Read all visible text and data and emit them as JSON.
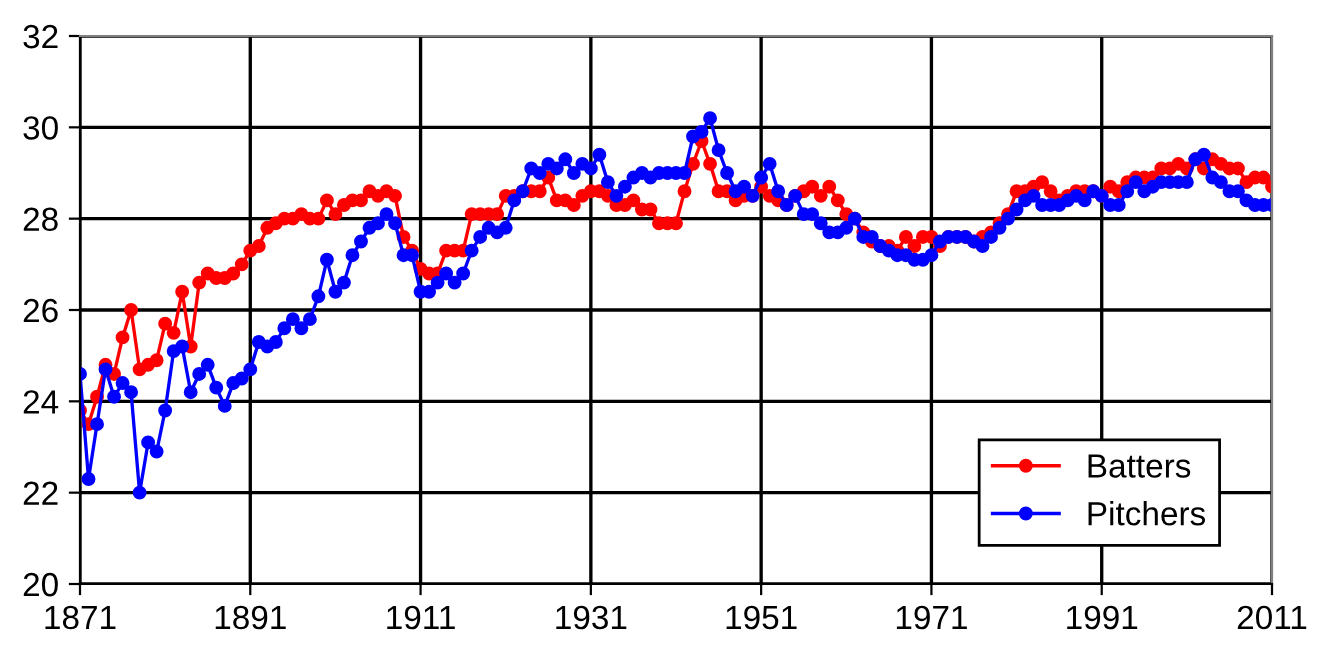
{
  "chart_data": {
    "type": "line",
    "x": [
      1871,
      1872,
      1873,
      1874,
      1875,
      1876,
      1877,
      1878,
      1879,
      1880,
      1881,
      1882,
      1883,
      1884,
      1885,
      1886,
      1887,
      1888,
      1889,
      1890,
      1891,
      1892,
      1893,
      1894,
      1895,
      1896,
      1897,
      1898,
      1899,
      1900,
      1901,
      1902,
      1903,
      1904,
      1905,
      1906,
      1907,
      1908,
      1909,
      1910,
      1911,
      1912,
      1913,
      1914,
      1915,
      1916,
      1917,
      1918,
      1919,
      1920,
      1921,
      1922,
      1923,
      1924,
      1925,
      1926,
      1927,
      1928,
      1929,
      1930,
      1931,
      1932,
      1933,
      1934,
      1935,
      1936,
      1937,
      1938,
      1939,
      1940,
      1941,
      1942,
      1943,
      1944,
      1945,
      1946,
      1947,
      1948,
      1949,
      1950,
      1951,
      1952,
      1953,
      1954,
      1955,
      1956,
      1957,
      1958,
      1959,
      1960,
      1961,
      1962,
      1963,
      1964,
      1965,
      1966,
      1967,
      1968,
      1969,
      1970,
      1971,
      1972,
      1973,
      1974,
      1975,
      1976,
      1977,
      1978,
      1979,
      1980,
      1981,
      1982,
      1983,
      1984,
      1985,
      1986,
      1987,
      1988,
      1989,
      1990,
      1991,
      1992,
      1993,
      1994,
      1995,
      1996,
      1997,
      1998,
      1999,
      2000,
      2001,
      2002,
      2003,
      2004,
      2005,
      2006,
      2007,
      2008,
      2009,
      2010,
      2011
    ],
    "series": [
      {
        "name": "Batters",
        "color": "#ff0000",
        "values": [
          23.8,
          23.5,
          24.1,
          24.8,
          24.6,
          25.4,
          26.0,
          24.7,
          24.8,
          24.9,
          25.7,
          25.5,
          26.4,
          25.2,
          26.6,
          26.8,
          26.7,
          26.7,
          26.8,
          27.0,
          27.3,
          27.4,
          27.8,
          27.9,
          28.0,
          28.0,
          28.1,
          28.0,
          28.0,
          28.4,
          28.1,
          28.3,
          28.4,
          28.4,
          28.6,
          28.5,
          28.6,
          28.5,
          27.6,
          27.3,
          26.9,
          26.8,
          26.8,
          27.3,
          27.3,
          27.3,
          28.1,
          28.1,
          28.1,
          28.1,
          28.5,
          28.5,
          28.6,
          28.6,
          28.6,
          28.9,
          28.4,
          28.4,
          28.3,
          28.5,
          28.6,
          28.6,
          28.5,
          28.3,
          28.3,
          28.4,
          28.2,
          28.2,
          27.9,
          27.9,
          27.9,
          28.6,
          29.2,
          29.7,
          29.2,
          28.6,
          28.6,
          28.4,
          28.5,
          28.5,
          28.7,
          28.5,
          28.4,
          28.3,
          28.5,
          28.6,
          28.7,
          28.5,
          28.7,
          28.4,
          28.1,
          28.0,
          27.7,
          27.5,
          27.4,
          27.4,
          27.3,
          27.6,
          27.4,
          27.6,
          27.6,
          27.4,
          27.6,
          27.6,
          27.6,
          27.5,
          27.6,
          27.7,
          27.9,
          28.1,
          28.6,
          28.6,
          28.7,
          28.8,
          28.6,
          28.4,
          28.5,
          28.6,
          28.6,
          28.6,
          28.5,
          28.7,
          28.6,
          28.8,
          28.9,
          28.9,
          28.9,
          29.1,
          29.1,
          29.2,
          29.1,
          29.3,
          29.1,
          29.3,
          29.2,
          29.1,
          29.1,
          28.8,
          28.9,
          28.9,
          28.7
        ]
      },
      {
        "name": "Pitchers",
        "color": "#0000ff",
        "values": [
          24.6,
          22.3,
          23.5,
          24.7,
          24.1,
          24.4,
          24.2,
          22.0,
          23.1,
          22.9,
          23.8,
          25.1,
          25.2,
          24.2,
          24.6,
          24.8,
          24.3,
          23.9,
          24.4,
          24.5,
          24.7,
          25.3,
          25.2,
          25.3,
          25.6,
          25.8,
          25.6,
          25.8,
          26.3,
          27.1,
          26.4,
          26.6,
          27.2,
          27.5,
          27.8,
          27.9,
          28.1,
          27.9,
          27.2,
          27.2,
          26.4,
          26.4,
          26.6,
          26.8,
          26.6,
          26.8,
          27.3,
          27.6,
          27.8,
          27.7,
          27.8,
          28.4,
          28.6,
          29.1,
          29.0,
          29.2,
          29.1,
          29.3,
          29.0,
          29.2,
          29.1,
          29.4,
          28.8,
          28.5,
          28.7,
          28.9,
          29.0,
          28.9,
          29.0,
          29.0,
          29.0,
          29.0,
          29.8,
          29.9,
          30.2,
          29.5,
          29.0,
          28.6,
          28.7,
          28.5,
          28.9,
          29.2,
          28.6,
          28.3,
          28.5,
          28.1,
          28.1,
          27.9,
          27.7,
          27.7,
          27.8,
          28.0,
          27.6,
          27.6,
          27.4,
          27.3,
          27.2,
          27.2,
          27.1,
          27.1,
          27.2,
          27.5,
          27.6,
          27.6,
          27.6,
          27.5,
          27.4,
          27.6,
          27.8,
          28.0,
          28.2,
          28.4,
          28.5,
          28.3,
          28.3,
          28.3,
          28.4,
          28.5,
          28.4,
          28.6,
          28.5,
          28.3,
          28.3,
          28.6,
          28.8,
          28.6,
          28.7,
          28.8,
          28.8,
          28.8,
          28.8,
          29.3,
          29.4,
          28.9,
          28.8,
          28.6,
          28.6,
          28.4,
          28.3,
          28.3,
          28.3
        ]
      }
    ],
    "xlim": [
      1871,
      2011
    ],
    "xticks": [
      1871,
      1891,
      1911,
      1931,
      1951,
      1971,
      1991,
      2011
    ],
    "ylim": [
      20,
      32
    ],
    "yticks": [
      20,
      22,
      24,
      26,
      28,
      30,
      32
    ],
    "grid": true,
    "legend": "bottom right",
    "marker": "circle",
    "line_style": "solid"
  }
}
